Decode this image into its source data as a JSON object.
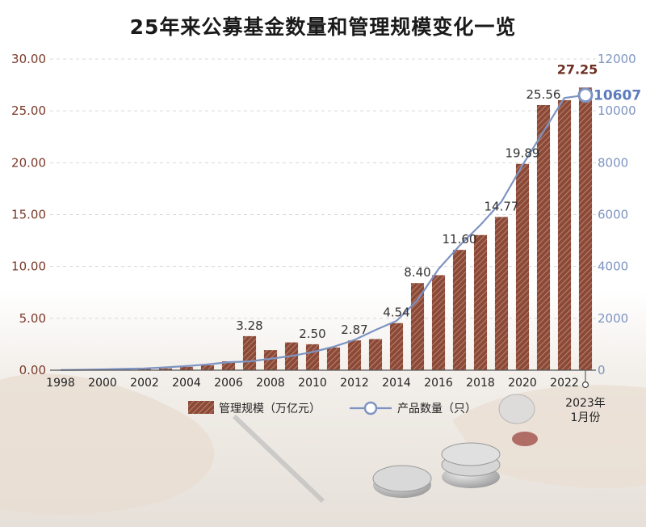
{
  "chart_data": {
    "type": "bar",
    "title": "25年来公募基金数量和管理规模变化一览",
    "categories": [
      "1998",
      "1999",
      "2000",
      "2001",
      "2002",
      "2003",
      "2004",
      "2005",
      "2006",
      "2007",
      "2008",
      "2009",
      "2010",
      "2011",
      "2012",
      "2013",
      "2014",
      "2015",
      "2016",
      "2017",
      "2018",
      "2019",
      "2020",
      "2021",
      "2022",
      "2023年1月份"
    ],
    "x_tick_labels": [
      "1998",
      "2000",
      "2002",
      "2004",
      "2006",
      "2008",
      "2010",
      "2012",
      "2014",
      "2016",
      "2018",
      "2020",
      "2022",
      "2023年\n1月份"
    ],
    "series": [
      {
        "name": "管理规模（万亿元）",
        "type": "bar",
        "axis": "left",
        "values": [
          0.01,
          0.06,
          0.08,
          0.08,
          0.13,
          0.17,
          0.32,
          0.47,
          0.86,
          3.28,
          1.94,
          2.68,
          2.5,
          2.19,
          2.87,
          3.0,
          4.54,
          8.4,
          9.16,
          11.6,
          13.03,
          14.77,
          19.89,
          25.56,
          26.03,
          27.25
        ]
      },
      {
        "name": "产品数量（只）",
        "type": "line",
        "axis": "right",
        "values": [
          5,
          15,
          30,
          50,
          70,
          110,
          160,
          220,
          310,
          340,
          440,
          550,
          700,
          900,
          1170,
          1550,
          1900,
          2700,
          3900,
          4800,
          5600,
          6500,
          7900,
          9200,
          10500,
          10607
        ]
      }
    ],
    "data_labels": [
      {
        "category": "2007",
        "text": "3.28"
      },
      {
        "category": "2010",
        "text": "2.50"
      },
      {
        "category": "2012",
        "text": "2.87"
      },
      {
        "category": "2014",
        "text": "4.54"
      },
      {
        "category": "2015",
        "text": "8.40"
      },
      {
        "category": "2017",
        "text": "11.60"
      },
      {
        "category": "2019",
        "text": "14.77"
      },
      {
        "category": "2020",
        "text": "19.89"
      },
      {
        "category": "2021",
        "text": "25.56"
      },
      {
        "category": "2023年1月份",
        "text": "27.25"
      }
    ],
    "line_end_label": "10607",
    "y_left": {
      "ylim": [
        0,
        30
      ],
      "ticks": [
        "0.00",
        "5.00",
        "10.00",
        "15.00",
        "20.00",
        "25.00",
        "30.00"
      ]
    },
    "y_right": {
      "ylim": [
        0,
        12000
      ],
      "ticks": [
        "0",
        "2000",
        "4000",
        "6000",
        "8000",
        "10000",
        "12000"
      ]
    },
    "grid": true,
    "legend_position": "bottom-center",
    "colors": {
      "bar_fill": "#8b4a38",
      "bar_hatch": "#c88f7c",
      "line": "#7d93c2",
      "left_axis_text": "#7a3a2a",
      "right_axis_text": "#7d93c2",
      "highlight_bar_label": "#6e2f22",
      "highlight_line_label": "#5b7bbd"
    }
  }
}
